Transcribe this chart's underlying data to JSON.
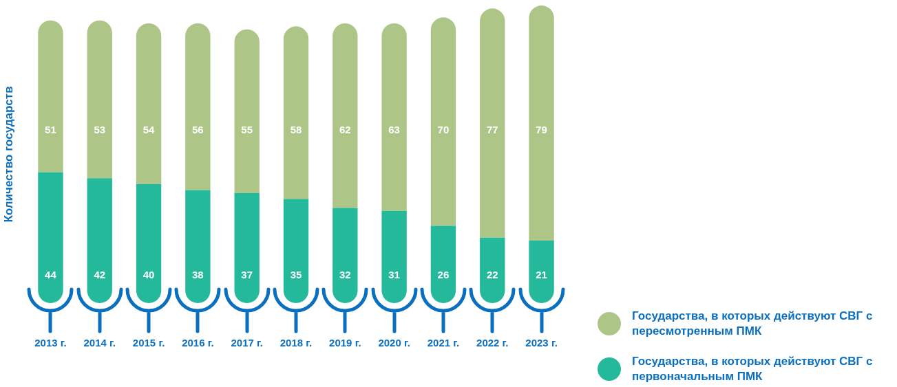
{
  "chart_data": {
    "type": "bar",
    "stacked": true,
    "ylabel": "Количество государств",
    "categories": [
      "2013 г.",
      "2014 г.",
      "2015 г.",
      "2016 г.",
      "2017 г.",
      "2018 г.",
      "2019 г.",
      "2020 г.",
      "2021 г.",
      "2022 г.",
      "2023 г."
    ],
    "series": [
      {
        "name": "Государства, в которых действуют СВГ с первоначальным ПМК",
        "color": "#25b99b",
        "values": [
          44,
          42,
          40,
          38,
          37,
          35,
          32,
          31,
          26,
          22,
          21
        ]
      },
      {
        "name": "Государства, в которых действуют СВГ с пересмотренным ПМК",
        "color": "#adc688",
        "values": [
          51,
          53,
          54,
          56,
          55,
          58,
          62,
          63,
          70,
          77,
          79
        ]
      }
    ],
    "data_labels": true,
    "legend": "bottom right",
    "tick_labels": "x",
    "grid": false
  }
}
